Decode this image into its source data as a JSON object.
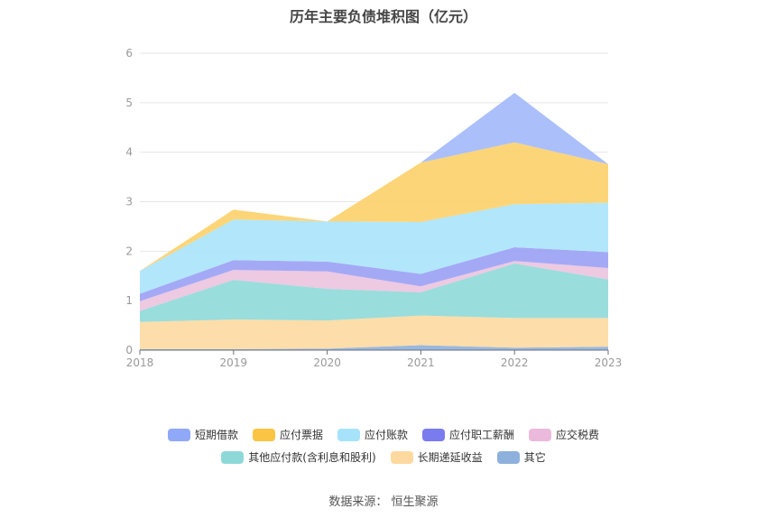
{
  "title": "历年主要负债堆积图（亿元）",
  "source": "数据来源：  恒生聚源",
  "chart_data": {
    "type": "area",
    "stacked": true,
    "categories": [
      "2018",
      "2019",
      "2020",
      "2021",
      "2022",
      "2023"
    ],
    "ylim": [
      0,
      6
    ],
    "yticks": [
      "0",
      "1",
      "2",
      "3",
      "4",
      "5",
      "6"
    ],
    "grid": true,
    "legend_position": "bottom",
    "series": [
      {
        "name": "其它",
        "color": "#8eb0dc",
        "values": [
          0.02,
          0.02,
          0.03,
          0.1,
          0.05,
          0.07
        ]
      },
      {
        "name": "长期递延收益",
        "color": "#fdd9a0",
        "values": [
          0.55,
          0.6,
          0.57,
          0.6,
          0.6,
          0.58
        ]
      },
      {
        "name": "其他应付款(含利息和股利)",
        "color": "#8ed9d8",
        "values": [
          0.22,
          0.8,
          0.64,
          0.47,
          1.1,
          0.78
        ]
      },
      {
        "name": "应交税费",
        "color": "#ebc3df",
        "values": [
          0.2,
          0.2,
          0.35,
          0.12,
          0.05,
          0.23
        ]
      },
      {
        "name": "应付职工薪酬",
        "color": "#9aa0f5",
        "values": [
          0.15,
          0.2,
          0.2,
          0.25,
          0.28,
          0.32
        ]
      },
      {
        "name": "应付账款",
        "color": "#a8e3fb",
        "values": [
          0.46,
          0.82,
          0.81,
          1.05,
          0.87,
          1.0
        ]
      },
      {
        "name": "应付票据",
        "color": "#fdd06a",
        "values": [
          0.0,
          0.2,
          0.0,
          1.2,
          1.25,
          0.78
        ]
      },
      {
        "name": "短期借款",
        "color": "#a2b8fb",
        "values": [
          0.0,
          0.0,
          0.0,
          0.0,
          1.0,
          0.0
        ]
      }
    ]
  },
  "legend": {
    "row1": [
      {
        "label": "短期借款",
        "color": "#8fa8f8"
      },
      {
        "label": "应付票据",
        "color": "#fcc443"
      },
      {
        "label": "应付账款",
        "color": "#a6e3fb"
      },
      {
        "label": "应付职工薪酬",
        "color": "#7b7bf0"
      },
      {
        "label": "应交税费",
        "color": "#ebb9dc"
      }
    ],
    "row2": [
      {
        "label": "其他应付款(含利息和股利)",
        "color": "#8ed9d8"
      },
      {
        "label": "长期递延收益",
        "color": "#fdd9a0"
      },
      {
        "label": "其它",
        "color": "#8eb0dc"
      }
    ]
  }
}
